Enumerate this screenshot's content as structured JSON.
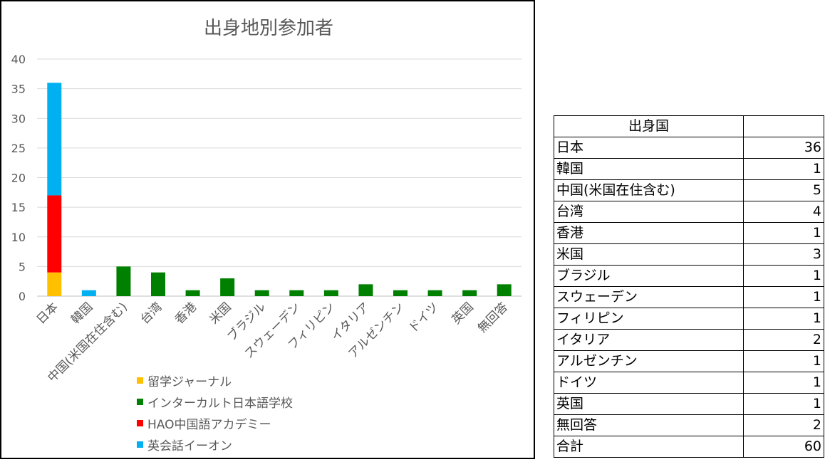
{
  "chart_data": {
    "type": "bar",
    "stacked": true,
    "title": "出身地別参加者",
    "categories": [
      "日本",
      "韓国",
      "中国(米国在住含む)",
      "台湾",
      "香港",
      "米国",
      "ブラジル",
      "スウェーデン",
      "フィリピン",
      "イタリア",
      "アルゼンチン",
      "ドイツ",
      "英国",
      "無回答"
    ],
    "series": [
      {
        "name": "留学ジャーナル",
        "color": "#FFC000",
        "values": [
          4,
          0,
          0,
          0,
          0,
          0,
          0,
          0,
          0,
          0,
          0,
          0,
          0,
          0
        ]
      },
      {
        "name": "インターカルト日本語学校",
        "color": "#008000",
        "values": [
          0,
          0,
          5,
          4,
          1,
          3,
          1,
          1,
          1,
          2,
          1,
          1,
          1,
          2
        ]
      },
      {
        "name": "HAO中国語アカデミー",
        "color": "#FF0000",
        "values": [
          13,
          0,
          0,
          0,
          0,
          0,
          0,
          0,
          0,
          0,
          0,
          0,
          0,
          0
        ]
      },
      {
        "name": "英会話イーオン",
        "color": "#00B0F0",
        "values": [
          19,
          1,
          0,
          0,
          0,
          0,
          0,
          0,
          0,
          0,
          0,
          0,
          0,
          0
        ]
      }
    ],
    "ylim": [
      0,
      40
    ],
    "yticks": [
      0,
      5,
      10,
      15,
      20,
      25,
      30,
      35,
      40
    ],
    "grid": true,
    "legend_position": "bottom"
  },
  "table": {
    "header": [
      "出身国",
      ""
    ],
    "rows": [
      {
        "name": "日本",
        "count": "36"
      },
      {
        "name": "韓国",
        "count": "1"
      },
      {
        "name": "中国(米国在住含む)",
        "count": "5"
      },
      {
        "name": "台湾",
        "count": "4"
      },
      {
        "name": "香港",
        "count": "1"
      },
      {
        "name": "米国",
        "count": "3"
      },
      {
        "name": "ブラジル",
        "count": "1"
      },
      {
        "name": "スウェーデン",
        "count": "1"
      },
      {
        "name": "フィリピン",
        "count": "1"
      },
      {
        "name": "イタリア",
        "count": "2"
      },
      {
        "name": "アルゼンチン",
        "count": "1"
      },
      {
        "name": "ドイツ",
        "count": "1"
      },
      {
        "name": "英国",
        "count": "1"
      },
      {
        "name": "無回答",
        "count": "2"
      }
    ],
    "total": {
      "name": "合計",
      "count": "60"
    }
  }
}
